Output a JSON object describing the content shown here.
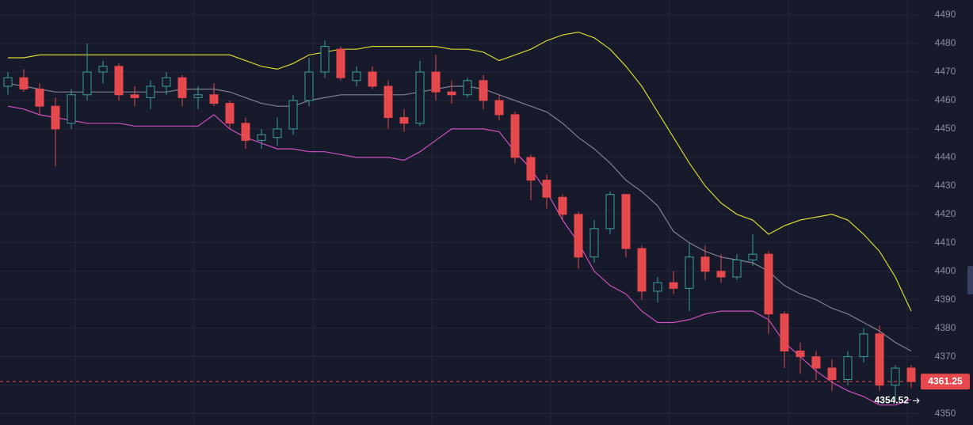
{
  "chart_data": {
    "type": "candlestick",
    "ylim": [
      4346,
      4495.3
    ],
    "yticks": [
      4350,
      4360,
      4370,
      4380,
      4390,
      4400,
      4410,
      4420,
      4430,
      4440,
      4450,
      4460,
      4470,
      4480,
      4490
    ],
    "grid": true,
    "up_color": "#3c9e9a",
    "down_color": "#e5484d",
    "open": [
      4465,
      4468,
      4464,
      4458,
      4452,
      4462,
      4470,
      4472,
      4462,
      4461,
      4465,
      4468,
      4461,
      4462,
      4459,
      4452,
      4446,
      4447,
      4450,
      4460,
      4470,
      4478,
      4467,
      4470,
      4465,
      4454,
      4452,
      4470,
      4463,
      4462,
      4467,
      4460,
      4455,
      4440,
      4432,
      4426,
      4420,
      4405,
      4415,
      4427,
      4408,
      4393,
      4396,
      4394,
      4405,
      4400,
      4398,
      4404,
      4406,
      4385,
      4372,
      4370,
      4366,
      4362,
      4370,
      4378,
      4360,
      4366
    ],
    "high": [
      4470,
      4471,
      4466,
      4461,
      4464,
      4480,
      4474,
      4473,
      4465,
      4467,
      4470,
      4469,
      4465,
      4466,
      4460,
      4454,
      4450,
      4454,
      4462,
      4475,
      4481,
      4479,
      4472,
      4472,
      4467,
      4457,
      4474,
      4476,
      4467,
      4468,
      4469,
      4462,
      4456,
      4441,
      4434,
      4427,
      4421,
      4418,
      4428,
      4427,
      4409,
      4398,
      4400,
      4410,
      4409,
      4406,
      4406,
      4413,
      4407,
      4386,
      4375,
      4372,
      4369,
      4372,
      4380,
      4381,
      4367,
      4367
    ],
    "low": [
      4462,
      4463,
      4455,
      4437,
      4450,
      4460,
      4466,
      4460,
      4458,
      4457,
      4462,
      4458,
      4457,
      4458,
      4450,
      4443,
      4443,
      4444,
      4448,
      4458,
      4468,
      4467,
      4465,
      4464,
      4450,
      4449,
      4451,
      4460,
      4459,
      4461,
      4457,
      4453,
      4438,
      4425,
      4422,
      4418,
      4401,
      4403,
      4413,
      4405,
      4390,
      4389,
      4392,
      4386,
      4397,
      4396,
      4397,
      4402,
      4378,
      4366,
      4364,
      4362,
      4358,
      4360,
      4368,
      4358,
      4354.52,
      4359
    ],
    "close": [
      4468,
      4464,
      4458,
      4450,
      4462,
      4470,
      4472,
      4462,
      4461,
      4465,
      4468,
      4461,
      4462,
      4459,
      4452,
      4446,
      4448,
      4450,
      4460,
      4470,
      4479,
      4468,
      4470,
      4465,
      4454,
      4452,
      4470,
      4463,
      4462,
      4467,
      4460,
      4455,
      4440,
      4432,
      4426,
      4420,
      4405,
      4415,
      4427,
      4408,
      4393,
      4396,
      4394,
      4405,
      4400,
      4398,
      4404,
      4406,
      4385,
      4372,
      4370,
      4366,
      4362,
      4370,
      4378,
      4360,
      4366,
      4361.25
    ],
    "bands": [
      {
        "color": "#d8d631",
        "values": [
          4475,
          4475,
          4476,
          4476,
          4476,
          4476,
          4476,
          4476,
          4476,
          4476,
          4476,
          4476,
          4476,
          4476,
          4476,
          4474,
          4472,
          4471,
          4473,
          4476,
          4477,
          4478,
          4478,
          4479,
          4479,
          4479,
          4479,
          4479,
          4478,
          4478,
          4477,
          4474,
          4476,
          4478,
          4481,
          4483,
          4484,
          4482,
          4478,
          4472,
          4465,
          4456,
          4447,
          4438,
          4430,
          4424,
          4420,
          4418,
          4413,
          4416,
          4418,
          4419,
          4420,
          4418,
          4413,
          4407,
          4398,
          4386
        ]
      },
      {
        "color": "#7d8190",
        "values": [
          4466,
          4465,
          4464,
          4463,
          4463,
          4463,
          4463,
          4463,
          4463,
          4463,
          4463,
          4464,
          4464,
          4464,
          4463,
          4461,
          4459,
          4458,
          4458,
          4460,
          4461,
          4462,
          4462,
          4462,
          4462,
          4462,
          4463,
          4464,
          4465,
          4465,
          4464,
          4462,
          4460,
          4458,
          4456,
          4452,
          4447,
          4443,
          4438,
          4432,
          4428,
          4423,
          4414,
          4410,
          4407,
          4405,
          4404,
          4403,
          4400,
          4395,
          4392,
          4390,
          4387,
          4385,
          4382,
          4379,
          4375,
          4372
        ]
      },
      {
        "color": "#d04fc0",
        "values": [
          4458,
          4457,
          4455,
          4454,
          4453,
          4452,
          4452,
          4452,
          4451,
          4451,
          4451,
          4451,
          4451,
          4455,
          4450,
          4447,
          4445,
          4443,
          4443,
          4442,
          4442,
          4441,
          4440,
          4440,
          4440,
          4439,
          4442,
          4446,
          4450,
          4450,
          4450,
          4449,
          4442,
          4436,
          4428,
          4418,
          4410,
          4400,
          4395,
          4392,
          4386,
          4382,
          4382,
          4383,
          4385,
          4386,
          4386,
          4386,
          4383,
          4375,
          4370,
          4365,
          4361,
          4358,
          4356,
          4353,
          4353,
          4355
        ]
      }
    ],
    "last_price": 4361.25,
    "low_marker": 4354.52
  }
}
